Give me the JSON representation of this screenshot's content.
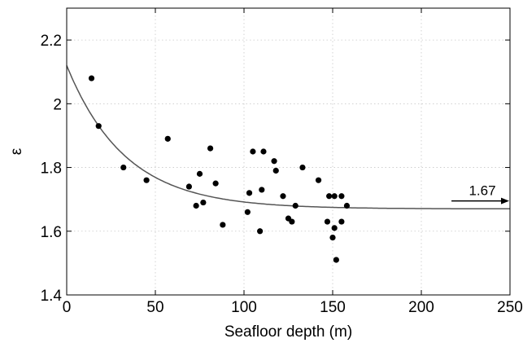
{
  "chart_data": {
    "type": "scatter",
    "xlabel": "Seafloor depth (m)",
    "ylabel": "ε",
    "xlim": [
      0,
      250
    ],
    "ylim": [
      1.4,
      2.3
    ],
    "xticks": [
      0,
      50,
      100,
      150,
      200,
      250
    ],
    "yticks": [
      1.4,
      1.6,
      1.8,
      2.0,
      2.2
    ],
    "xtick_labels": [
      "0",
      "50",
      "100",
      "150",
      "200",
      "250"
    ],
    "ytick_labels": [
      "1.4",
      "1.6",
      "1.8",
      "2",
      "2.2"
    ],
    "grid": true,
    "points": [
      {
        "x": 14,
        "y": 2.08
      },
      {
        "x": 18,
        "y": 1.93
      },
      {
        "x": 32,
        "y": 1.8
      },
      {
        "x": 45,
        "y": 1.76
      },
      {
        "x": 57,
        "y": 1.89
      },
      {
        "x": 69,
        "y": 1.74
      },
      {
        "x": 73,
        "y": 1.68
      },
      {
        "x": 75,
        "y": 1.78
      },
      {
        "x": 77,
        "y": 1.69
      },
      {
        "x": 81,
        "y": 1.86
      },
      {
        "x": 84,
        "y": 1.75
      },
      {
        "x": 88,
        "y": 1.62
      },
      {
        "x": 102,
        "y": 1.66
      },
      {
        "x": 103,
        "y": 1.72
      },
      {
        "x": 105,
        "y": 1.85
      },
      {
        "x": 109,
        "y": 1.6
      },
      {
        "x": 110,
        "y": 1.73
      },
      {
        "x": 111,
        "y": 1.85
      },
      {
        "x": 117,
        "y": 1.82
      },
      {
        "x": 118,
        "y": 1.79
      },
      {
        "x": 122,
        "y": 1.71
      },
      {
        "x": 125,
        "y": 1.64
      },
      {
        "x": 127,
        "y": 1.63
      },
      {
        "x": 129,
        "y": 1.68
      },
      {
        "x": 133,
        "y": 1.8
      },
      {
        "x": 142,
        "y": 1.76
      },
      {
        "x": 147,
        "y": 1.63
      },
      {
        "x": 148,
        "y": 1.71
      },
      {
        "x": 150,
        "y": 1.58
      },
      {
        "x": 151,
        "y": 1.61
      },
      {
        "x": 151,
        "y": 1.71
      },
      {
        "x": 152,
        "y": 1.51
      },
      {
        "x": 155,
        "y": 1.63
      },
      {
        "x": 155,
        "y": 1.71
      },
      {
        "x": 158,
        "y": 1.68
      }
    ],
    "fit_curve": {
      "form": "exponential decay",
      "asymptote": 1.67,
      "y_at_0": 2.12,
      "decay_length": 33,
      "color": "#555555"
    },
    "annotation": {
      "text": "1.67",
      "arrow_from_x": 217,
      "arrow_to_x": 250,
      "arrow_y": 1.695
    }
  }
}
